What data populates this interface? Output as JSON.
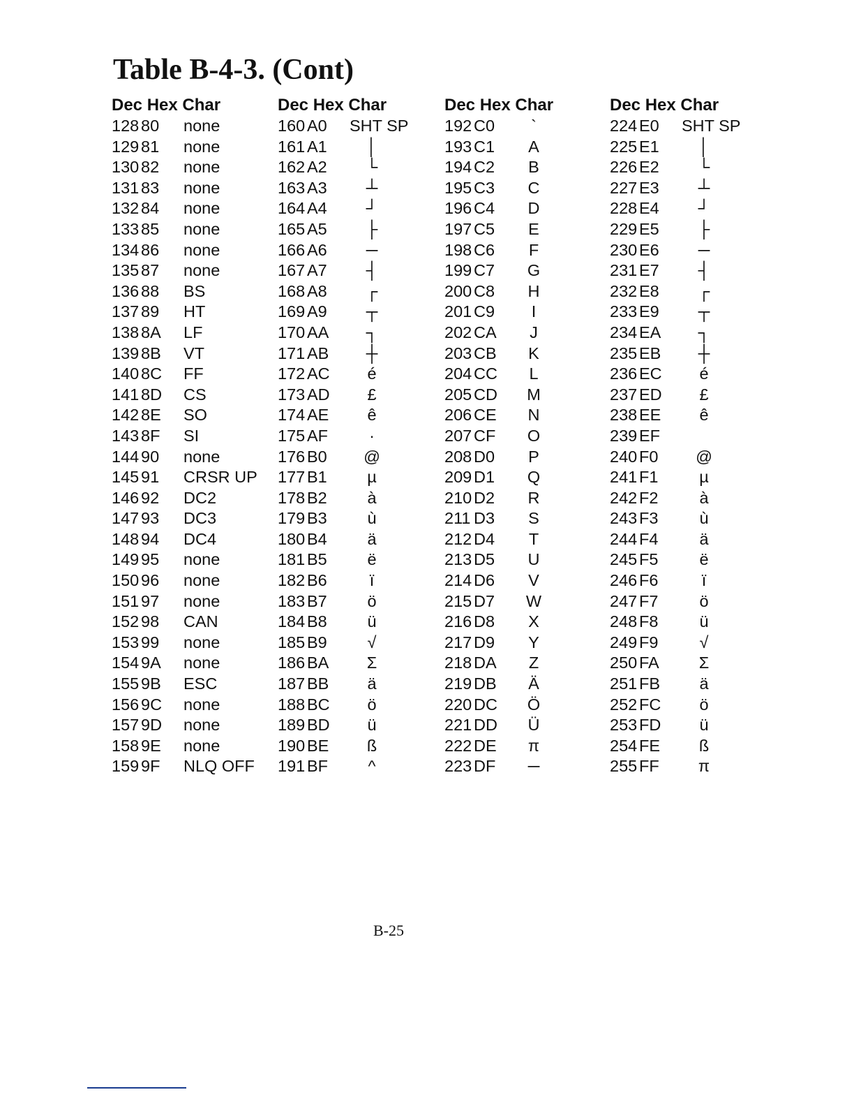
{
  "title": "Table B-4-3. (Cont)",
  "header": "Dec Hex Char",
  "page_number": "B-25",
  "columns": [
    {
      "rows": [
        [
          "128",
          "80",
          "none"
        ],
        [
          "129",
          "81",
          "none"
        ],
        [
          "130",
          "82",
          "none"
        ],
        [
          "131",
          "83",
          "none"
        ],
        [
          "132",
          "84",
          "none"
        ],
        [
          "133",
          "85",
          "none"
        ],
        [
          "134",
          "86",
          "none"
        ],
        [
          "135",
          "87",
          "none"
        ],
        [
          "136",
          "88",
          "BS"
        ],
        [
          "137",
          "89",
          "HT"
        ],
        [
          "138",
          "8A",
          "LF"
        ],
        [
          "139",
          "8B",
          "VT"
        ],
        [
          "140",
          "8C",
          "FF"
        ],
        [
          "141",
          "8D",
          "CS"
        ],
        [
          "142",
          "8E",
          "SO"
        ],
        [
          "143",
          "8F",
          "SI"
        ],
        [
          "144",
          "90",
          "none"
        ],
        [
          "145",
          "91",
          "CRSR UP"
        ],
        [
          "146",
          "92",
          "DC2"
        ],
        [
          "147",
          "93",
          "DC3"
        ],
        [
          "148",
          "94",
          "DC4"
        ],
        [
          "149",
          "95",
          "none"
        ],
        [
          "150",
          "96",
          "none"
        ],
        [
          "151",
          "97",
          "none"
        ],
        [
          "152",
          "98",
          "CAN"
        ],
        [
          "153",
          "99",
          "none"
        ],
        [
          "154",
          "9A",
          "none"
        ],
        [
          "155",
          "9B",
          "ESC"
        ],
        [
          "156",
          "9C",
          "none"
        ],
        [
          "157",
          "9D",
          "none"
        ],
        [
          "158",
          "9E",
          "none"
        ],
        [
          "159",
          "9F",
          "NLQ OFF"
        ]
      ]
    },
    {
      "rows": [
        [
          "160",
          "A0",
          "SHT SP"
        ],
        [
          "161",
          "A1",
          "│"
        ],
        [
          "162",
          "A2",
          "└"
        ],
        [
          "163",
          "A3",
          "┴"
        ],
        [
          "164",
          "A4",
          "┘"
        ],
        [
          "165",
          "A5",
          "├"
        ],
        [
          "166",
          "A6",
          "─"
        ],
        [
          "167",
          "A7",
          "┤"
        ],
        [
          "168",
          "A8",
          "┌"
        ],
        [
          "169",
          "A9",
          "┬"
        ],
        [
          "170",
          "AA",
          "┐"
        ],
        [
          "171",
          "AB",
          "┼"
        ],
        [
          "172",
          "AC",
          "é"
        ],
        [
          "173",
          "AD",
          "£"
        ],
        [
          "174",
          "AE",
          "ê"
        ],
        [
          "175",
          "AF",
          "·"
        ],
        [
          "176",
          "B0",
          "@"
        ],
        [
          "177",
          "B1",
          "µ"
        ],
        [
          "178",
          "B2",
          "à"
        ],
        [
          "179",
          "B3",
          "ù"
        ],
        [
          "180",
          "B4",
          "ä"
        ],
        [
          "181",
          "B5",
          "ë"
        ],
        [
          "182",
          "B6",
          "ï"
        ],
        [
          "183",
          "B7",
          "ö"
        ],
        [
          "184",
          "B8",
          "ü"
        ],
        [
          "185",
          "B9",
          "√"
        ],
        [
          "186",
          "BA",
          "Σ"
        ],
        [
          "187",
          "BB",
          "ä"
        ],
        [
          "188",
          "BC",
          "ö"
        ],
        [
          "189",
          "BD",
          "ü"
        ],
        [
          "190",
          "BE",
          "ß"
        ],
        [
          "191",
          "BF",
          "^"
        ]
      ]
    },
    {
      "rows": [
        [
          "192",
          "C0",
          "`"
        ],
        [
          "193",
          "C1",
          "A"
        ],
        [
          "194",
          "C2",
          "B"
        ],
        [
          "195",
          "C3",
          "C"
        ],
        [
          "196",
          "C4",
          "D"
        ],
        [
          "197",
          "C5",
          "E"
        ],
        [
          "198",
          "C6",
          "F"
        ],
        [
          "199",
          "C7",
          "G"
        ],
        [
          "200",
          "C8",
          "H"
        ],
        [
          "201",
          "C9",
          "I"
        ],
        [
          "202",
          "CA",
          "J"
        ],
        [
          "203",
          "CB",
          "K"
        ],
        [
          "204",
          "CC",
          "L"
        ],
        [
          "205",
          "CD",
          "M"
        ],
        [
          "206",
          "CE",
          "N"
        ],
        [
          "207",
          "CF",
          "O"
        ],
        [
          "208",
          "D0",
          "P"
        ],
        [
          "209",
          "D1",
          "Q"
        ],
        [
          "210",
          "D2",
          "R"
        ],
        [
          "211",
          "D3",
          "S"
        ],
        [
          "212",
          "D4",
          "T"
        ],
        [
          "213",
          "D5",
          "U"
        ],
        [
          "214",
          "D6",
          "V"
        ],
        [
          "215",
          "D7",
          "W"
        ],
        [
          "216",
          "D8",
          "X"
        ],
        [
          "217",
          "D9",
          "Y"
        ],
        [
          "218",
          "DA",
          "Z"
        ],
        [
          "219",
          "DB",
          "Ä"
        ],
        [
          "220",
          "DC",
          "Ö"
        ],
        [
          "221",
          "DD",
          "Ü"
        ],
        [
          "222",
          "DE",
          "π"
        ],
        [
          "223",
          "DF",
          "─"
        ]
      ]
    },
    {
      "rows": [
        [
          "224",
          "E0",
          "SHT SP"
        ],
        [
          "225",
          "E1",
          "│"
        ],
        [
          "226",
          "E2",
          "└"
        ],
        [
          "227",
          "E3",
          "┴"
        ],
        [
          "228",
          "E4",
          "┘"
        ],
        [
          "229",
          "E5",
          "├"
        ],
        [
          "230",
          "E6",
          "─"
        ],
        [
          "231",
          "E7",
          "┤"
        ],
        [
          "232",
          "E8",
          "┌"
        ],
        [
          "233",
          "E9",
          "┬"
        ],
        [
          "234",
          "EA",
          "┐"
        ],
        [
          "235",
          "EB",
          "┼"
        ],
        [
          "236",
          "EC",
          "é"
        ],
        [
          "237",
          "ED",
          "£"
        ],
        [
          "238",
          "EE",
          "ê"
        ],
        [
          "239",
          "EF",
          ""
        ],
        [
          "240",
          "F0",
          "@"
        ],
        [
          "241",
          "F1",
          "µ"
        ],
        [
          "242",
          "F2",
          "à"
        ],
        [
          "243",
          "F3",
          "ù"
        ],
        [
          "244",
          "F4",
          "ä"
        ],
        [
          "245",
          "F5",
          "ë"
        ],
        [
          "246",
          "F6",
          "ï"
        ],
        [
          "247",
          "F7",
          "ö"
        ],
        [
          "248",
          "F8",
          "ü"
        ],
        [
          "249",
          "F9",
          "√"
        ],
        [
          "250",
          "FA",
          "Σ"
        ],
        [
          "251",
          "FB",
          "ä"
        ],
        [
          "252",
          "FC",
          "ö"
        ],
        [
          "253",
          "FD",
          "ü"
        ],
        [
          "254",
          "FE",
          "ß"
        ],
        [
          "255",
          "FF",
          "π"
        ]
      ]
    }
  ]
}
